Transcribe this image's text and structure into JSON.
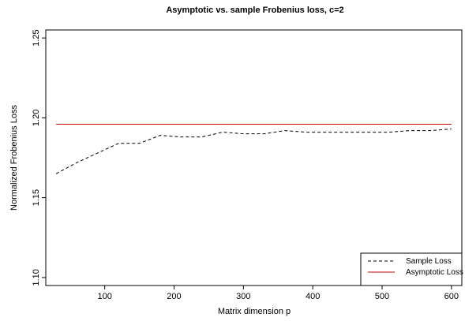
{
  "chart_data": {
    "type": "line",
    "title": "Asymptotic vs. sample Frobenius loss, c=2",
    "xlabel": "Matrix dimension p",
    "ylabel": "Normalized Frobenius Loss",
    "xlim": [
      15,
      615
    ],
    "ylim": [
      1.095,
      1.255
    ],
    "x_ticks": [
      100,
      200,
      300,
      400,
      500,
      600
    ],
    "y_ticks": [
      1.1,
      1.15,
      1.2,
      1.25
    ],
    "y_tick_labels": [
      "1.10",
      "1.15",
      "1.20",
      "1.25"
    ],
    "legend_position": "bottom-right",
    "series": [
      {
        "name": "Sample Loss",
        "style": "dashed",
        "color": "#000000",
        "x": [
          30,
          60,
          90,
          120,
          150,
          180,
          210,
          240,
          270,
          300,
          330,
          360,
          390,
          420,
          450,
          480,
          510,
          540,
          570,
          600
        ],
        "y": [
          1.165,
          1.172,
          1.178,
          1.184,
          1.184,
          1.189,
          1.188,
          1.188,
          1.191,
          1.19,
          1.19,
          1.192,
          1.191,
          1.191,
          1.191,
          1.191,
          1.191,
          1.192,
          1.192,
          1.193
        ]
      },
      {
        "name": "Asymptotic Loss",
        "style": "solid",
        "color": "#cc0000",
        "x": [
          30,
          600
        ],
        "y": [
          1.196,
          1.196
        ]
      }
    ]
  }
}
